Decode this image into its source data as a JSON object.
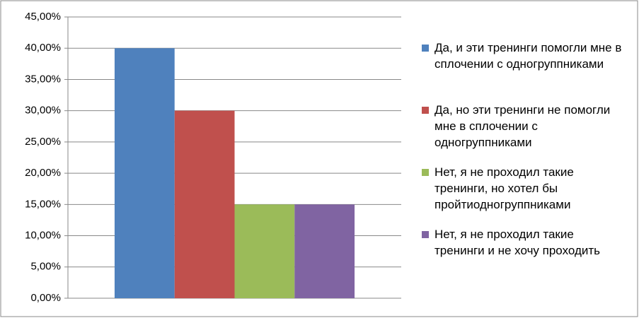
{
  "chart_data": {
    "type": "bar",
    "categories": [
      null
    ],
    "series": [
      {
        "name": "Да, и эти тренинги помогли мне в сплочении с одногруппниками",
        "color": "#4f81bd",
        "values": [
          40
        ]
      },
      {
        "name": "Да, но эти тренинги не помогли мне в сплочении с одногруппниками",
        "color": "#c0504d",
        "values": [
          30
        ]
      },
      {
        "name": "Нет, я не проходил такие тренинги, но хотел бы пройтиодногруппниками",
        "color": "#9bbb59",
        "values": [
          15
        ]
      },
      {
        "name": "Нет, я не проходил такие тренинги и не хочу проходить",
        "color": "#8064a2",
        "values": [
          15
        ]
      }
    ],
    "ylim": [
      0,
      45
    ],
    "yticks": [
      {
        "value": 0,
        "label": "0,00%"
      },
      {
        "value": 5,
        "label": "5,00%"
      },
      {
        "value": 10,
        "label": "10,00%"
      },
      {
        "value": 15,
        "label": "15,00%"
      },
      {
        "value": 20,
        "label": "20,00%"
      },
      {
        "value": 25,
        "label": "25,00%"
      },
      {
        "value": 30,
        "label": "30,00%"
      },
      {
        "value": 35,
        "label": "35,00%"
      },
      {
        "value": 40,
        "label": "40,00%"
      },
      {
        "value": 45,
        "label": "45,00%"
      }
    ],
    "grid": true,
    "legend": "right"
  }
}
